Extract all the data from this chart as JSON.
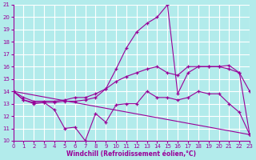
{
  "xlabel": "Windchill (Refroidissement éolien,°C)",
  "bg_color": "#b2ebeb",
  "grid_color": "#ffffff",
  "line_color": "#990099",
  "xlim": [
    0,
    23
  ],
  "ylim": [
    10,
    21
  ],
  "xticks": [
    0,
    1,
    2,
    3,
    4,
    5,
    6,
    7,
    8,
    9,
    10,
    11,
    12,
    13,
    14,
    15,
    16,
    17,
    18,
    19,
    20,
    21,
    22,
    23
  ],
  "yticks": [
    10,
    11,
    12,
    13,
    14,
    15,
    16,
    17,
    18,
    19,
    20,
    21
  ],
  "line1_x": [
    0,
    1,
    2,
    3,
    4,
    5,
    6,
    7,
    8,
    9,
    10,
    11,
    12,
    13,
    14,
    15,
    16,
    17,
    18,
    19,
    20,
    21,
    22,
    23
  ],
  "line1_y": [
    14,
    13.3,
    13,
    13.1,
    12.5,
    11.0,
    11.1,
    10.0,
    12.2,
    11.5,
    12.9,
    13.0,
    13.0,
    14.0,
    13.5,
    13.5,
    13.3,
    13.5,
    14.0,
    13.8,
    13.8,
    13.0,
    12.3,
    10.5
  ],
  "line2_x": [
    0,
    1,
    2,
    3,
    4,
    5,
    6,
    7,
    8,
    9,
    10,
    11,
    12,
    13,
    14,
    15,
    16,
    17,
    18,
    19,
    20,
    21,
    22,
    23
  ],
  "line2_y": [
    14,
    13.3,
    13.1,
    13.1,
    13.1,
    13.2,
    13.2,
    13.3,
    13.5,
    14.2,
    15.8,
    17.5,
    18.8,
    19.5,
    20.0,
    21.0,
    13.8,
    15.5,
    16.0,
    16.0,
    16.0,
    16.1,
    15.5,
    10.5
  ],
  "line3_x": [
    0,
    1,
    2,
    3,
    4,
    5,
    6,
    7,
    8,
    9,
    10,
    11,
    12,
    13,
    14,
    15,
    16,
    17,
    18,
    19,
    20,
    21,
    22,
    23
  ],
  "line3_y": [
    14,
    13.5,
    13.2,
    13.2,
    13.2,
    13.3,
    13.5,
    13.5,
    13.8,
    14.2,
    14.8,
    15.2,
    15.5,
    15.8,
    16.0,
    15.5,
    15.3,
    16.0,
    16.0,
    16.0,
    16.0,
    15.8,
    15.5,
    14.0
  ],
  "line4_x": [
    0,
    23
  ],
  "line4_y": [
    14,
    10.5
  ]
}
